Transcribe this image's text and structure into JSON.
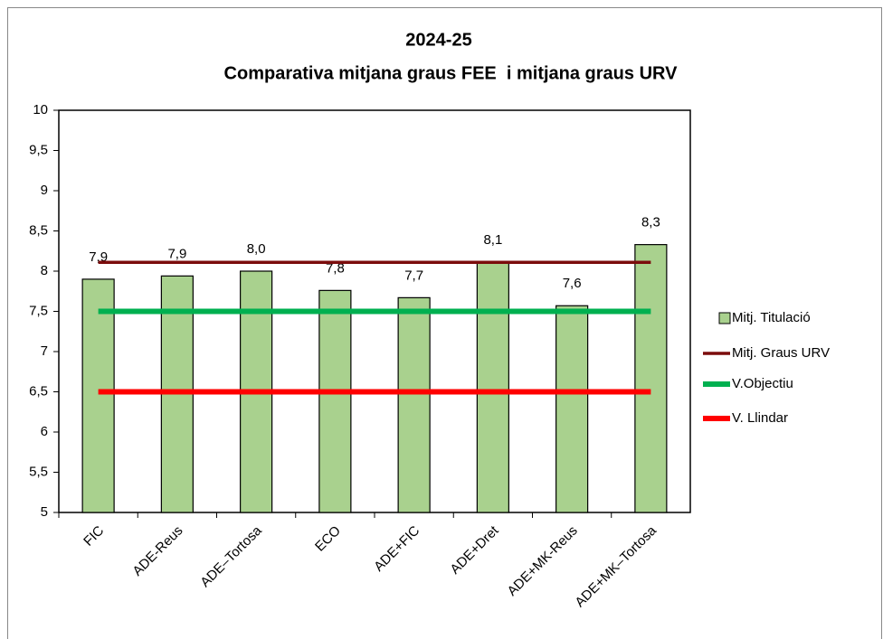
{
  "chart_data": {
    "type": "bar",
    "title": "2024-25",
    "subtitle": "Comparativa mitjana graus FEE  i mitjana graus URV",
    "categories": [
      "FIC",
      "ADE-Reus",
      "ADE–Tortosa",
      "ECO",
      "ADE+FIC",
      "ADE+Dret",
      "ADE+MK-Reus",
      "ADE+MK–Tortosa"
    ],
    "series": [
      {
        "name": "Mitj. Titulació",
        "type": "bar",
        "color": "#a9d18e",
        "values": [
          7.9,
          7.94,
          8.0,
          7.76,
          7.67,
          8.11,
          7.57,
          8.33
        ],
        "value_labels": [
          "7,9",
          "7,9",
          "8,0",
          "7,8",
          "7,7",
          "8,1",
          "7,6",
          "8,3"
        ]
      },
      {
        "name": "Mitj. Graus URV",
        "type": "line",
        "color": "#7b0c0c",
        "values": [
          8.11,
          8.11,
          8.11,
          8.11,
          8.11,
          8.11,
          8.11,
          8.11
        ]
      },
      {
        "name": "V.Objectiu",
        "type": "line",
        "color": "#00b050",
        "values": [
          7.5,
          7.5,
          7.5,
          7.5,
          7.5,
          7.5,
          7.5,
          7.5
        ]
      },
      {
        "name": "V. Llindar",
        "type": "line",
        "color": "#ff0000",
        "values": [
          6.5,
          6.5,
          6.5,
          6.5,
          6.5,
          6.5,
          6.5,
          6.5
        ]
      }
    ],
    "ylim": [
      5,
      10
    ],
    "yticks": [
      5,
      {
        "value": 5.5,
        "label": "5,5"
      },
      6,
      {
        "value": 6.5,
        "label": "6,5"
      },
      7,
      {
        "value": 7.5,
        "label": "7,5"
      },
      8,
      {
        "value": 8.5,
        "label": "8,5"
      },
      9,
      {
        "value": 9.5,
        "label": "9,5"
      },
      10
    ],
    "grid": false,
    "legend": "right"
  }
}
